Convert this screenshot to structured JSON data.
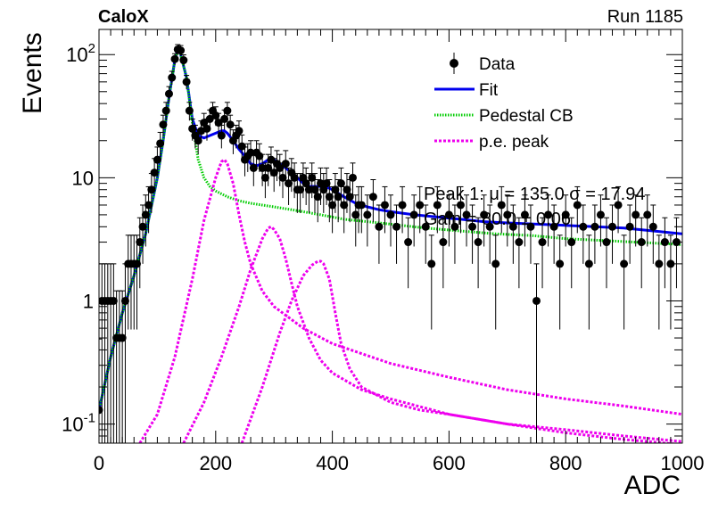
{
  "header": {
    "left_title": "CaloX",
    "right_title": "Run 1185"
  },
  "chart_data": {
    "type": "scatter",
    "xlabel": "ADC",
    "ylabel": "Events",
    "xlim": [
      0,
      1000
    ],
    "ylim": [
      0.07,
      160
    ],
    "yscale": "log",
    "x_ticks": [
      0,
      200,
      400,
      600,
      800,
      1000
    ],
    "y_ticks": [
      {
        "value": 0.1,
        "label": "10",
        "exp": "-1"
      },
      {
        "value": 1,
        "label": "1",
        "exp": ""
      },
      {
        "value": 10,
        "label": "10",
        "exp": ""
      },
      {
        "value": 100,
        "label": "10",
        "exp": "2"
      }
    ],
    "legend": {
      "placement": "top-right",
      "entries": [
        "Data",
        "Fit",
        "Pedestal CB",
        "p.e. peak"
      ]
    },
    "overlay_text": {
      "line1": "Peak 1: μ = 135.0 σ = 17.94",
      "line2": "Gain = 80.0 ± 0.06"
    },
    "colors": {
      "data": "#000000",
      "fit": "#0000ee",
      "pedestal": "#00cc00",
      "pe_peak": "#ee00ee"
    },
    "series": [
      {
        "name": "Data",
        "style": "points-with-errors",
        "x": [
          0,
          5,
          10,
          15,
          20,
          25,
          30,
          35,
          40,
          45,
          50,
          55,
          60,
          65,
          70,
          75,
          80,
          85,
          90,
          95,
          100,
          105,
          110,
          115,
          120,
          125,
          130,
          135,
          140,
          145,
          150,
          155,
          160,
          165,
          170,
          175,
          180,
          185,
          190,
          195,
          200,
          205,
          210,
          215,
          220,
          225,
          230,
          235,
          240,
          245,
          250,
          255,
          260,
          265,
          270,
          275,
          280,
          285,
          290,
          295,
          300,
          305,
          310,
          315,
          320,
          325,
          330,
          335,
          340,
          345,
          350,
          355,
          360,
          365,
          370,
          375,
          380,
          385,
          390,
          395,
          400,
          405,
          410,
          415,
          420,
          425,
          430,
          435,
          440,
          445,
          450,
          460,
          470,
          480,
          490,
          500,
          510,
          520,
          530,
          540,
          550,
          560,
          570,
          580,
          590,
          600,
          610,
          620,
          630,
          640,
          650,
          660,
          670,
          680,
          690,
          700,
          710,
          720,
          730,
          740,
          750,
          760,
          770,
          780,
          790,
          800,
          810,
          820,
          830,
          840,
          850,
          860,
          870,
          880,
          890,
          900,
          910,
          920,
          930,
          940,
          950,
          960,
          970,
          980,
          990
        ],
        "y": [
          0.13,
          1,
          1,
          1,
          1,
          1,
          0.5,
          0.5,
          0.5,
          1,
          2,
          2,
          2,
          2,
          3,
          4,
          5,
          6,
          8,
          11,
          14,
          19,
          27,
          35,
          48,
          65,
          92,
          110,
          108,
          90,
          60,
          35,
          25,
          22,
          20,
          24,
          28,
          25,
          30,
          35,
          32,
          28,
          22,
          30,
          35,
          27,
          20,
          22,
          24,
          18,
          14,
          15,
          16,
          12,
          16,
          15,
          12,
          10,
          12,
          14,
          11,
          13,
          12,
          10,
          13,
          9,
          11,
          10,
          8,
          8,
          10,
          9,
          8,
          10,
          8,
          7,
          9,
          8,
          9,
          7,
          6,
          8,
          7,
          9,
          6,
          8,
          7,
          10,
          5,
          6,
          6,
          5,
          7,
          4,
          6,
          5,
          4,
          6,
          3,
          5,
          6,
          4,
          2,
          6,
          3,
          5,
          4,
          6,
          5,
          4,
          3,
          5,
          4,
          2,
          6,
          5,
          4,
          3,
          5,
          4,
          1,
          3,
          5,
          4,
          2,
          5,
          3,
          6,
          4,
          2,
          4,
          5,
          3,
          4,
          6,
          2,
          4,
          5,
          3,
          5,
          4,
          2,
          3,
          2,
          3
        ]
      },
      {
        "name": "Fit",
        "style": "line",
        "x": [
          0,
          20,
          40,
          60,
          80,
          100,
          110,
          120,
          130,
          135,
          140,
          150,
          160,
          170,
          180,
          190,
          200,
          210,
          215,
          220,
          230,
          240,
          250,
          260,
          270,
          280,
          290,
          300,
          310,
          320,
          330,
          340,
          350,
          360,
          370,
          380,
          390,
          400,
          420,
          440,
          460,
          480,
          500,
          540,
          580,
          620,
          660,
          700,
          750,
          800,
          850,
          900,
          950,
          1000
        ],
        "y": [
          0.13,
          0.35,
          0.8,
          1.6,
          3.5,
          10,
          20,
          45,
          90,
          110,
          100,
          65,
          30,
          22,
          21,
          22,
          23,
          24,
          24,
          23,
          20,
          17,
          15,
          13,
          12.5,
          13,
          14,
          14,
          13,
          12,
          11,
          10,
          9,
          8.5,
          8.5,
          8.5,
          8.4,
          8,
          7,
          6.2,
          5.8,
          5.5,
          5.3,
          5,
          4.8,
          4.6,
          4.4,
          4.3,
          4.2,
          4.1,
          4,
          3.9,
          3.7,
          3.5
        ]
      },
      {
        "name": "Pedestal CB",
        "style": "dotted",
        "x": [
          0,
          20,
          40,
          60,
          80,
          100,
          110,
          120,
          130,
          135,
          140,
          150,
          160,
          170,
          180,
          190,
          200,
          220,
          240,
          260,
          280,
          300,
          340,
          380,
          420,
          460,
          500,
          560,
          620,
          680,
          740,
          800,
          860,
          920,
          980,
          1000
        ],
        "y": [
          0.13,
          0.35,
          0.8,
          1.6,
          3.5,
          10,
          20,
          45,
          90,
          110,
          100,
          65,
          28,
          14,
          10,
          8.5,
          7.8,
          7,
          6.5,
          6.2,
          6,
          5.8,
          5.4,
          5,
          4.6,
          4.4,
          4.2,
          3.9,
          3.7,
          3.5,
          3.4,
          3.2,
          3.1,
          3,
          2.9,
          2.85
        ]
      },
      {
        "name": "p.e. peak",
        "style": "dotted",
        "x": [
          70,
          100,
          130,
          160,
          180,
          200,
          210,
          215,
          220,
          230,
          240,
          250,
          260,
          280,
          300,
          350,
          400,
          500,
          600,
          700,
          800,
          900,
          1000
        ],
        "y": [
          0.07,
          0.12,
          0.35,
          1.5,
          4.5,
          10,
          13.5,
          14,
          13,
          9,
          5,
          3,
          2,
          1.2,
          0.9,
          0.6,
          0.45,
          0.31,
          0.24,
          0.19,
          0.16,
          0.14,
          0.12
        ]
      },
      {
        "name": "p.e. peak",
        "style": "dotted",
        "x": [
          145,
          180,
          210,
          240,
          260,
          280,
          290,
          295,
          300,
          310,
          320,
          330,
          340,
          360,
          380,
          400,
          450,
          500,
          600,
          700,
          800,
          900,
          1000
        ],
        "y": [
          0.07,
          0.15,
          0.35,
          0.9,
          1.8,
          3.2,
          3.9,
          4,
          3.8,
          3.2,
          2.2,
          1.4,
          0.9,
          0.5,
          0.33,
          0.26,
          0.19,
          0.16,
          0.12,
          0.1,
          0.085,
          0.075,
          0.068
        ]
      },
      {
        "name": "p.e. peak",
        "style": "dotted",
        "x": [
          245,
          280,
          310,
          330,
          350,
          365,
          375,
          380,
          385,
          395,
          405,
          415,
          430,
          450,
          500,
          550,
          600,
          700,
          800,
          900,
          1000
        ],
        "y": [
          0.07,
          0.2,
          0.55,
          1,
          1.6,
          1.95,
          2.1,
          2.1,
          2,
          1.5,
          0.8,
          0.45,
          0.28,
          0.2,
          0.15,
          0.13,
          0.12,
          0.1,
          0.09,
          0.08,
          0.072
        ]
      }
    ]
  }
}
